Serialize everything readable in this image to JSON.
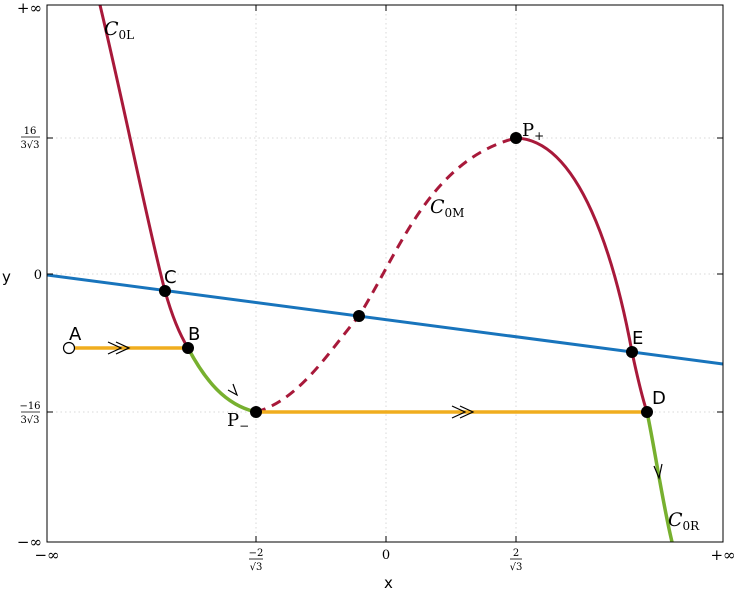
{
  "axes": {
    "x_label": "x",
    "y_label": "y",
    "x_ticks": [
      {
        "num": "",
        "den": "",
        "text": "−∞"
      },
      {
        "num": "−2",
        "den": "√3",
        "text": ""
      },
      {
        "num": "",
        "den": "",
        "text": "0"
      },
      {
        "num": "2",
        "den": "√3",
        "text": ""
      },
      {
        "num": "",
        "den": "",
        "text": "+∞"
      }
    ],
    "y_ticks": [
      {
        "num": "",
        "den": "",
        "text": "+∞"
      },
      {
        "num": "16",
        "den": "3√3",
        "text": ""
      },
      {
        "num": "",
        "den": "",
        "text": "0"
      },
      {
        "num": "−16",
        "den": "3√3",
        "text": ""
      },
      {
        "num": "",
        "den": "",
        "text": "−∞"
      }
    ],
    "grid": true
  },
  "curves": {
    "c0l": {
      "main": "C",
      "sub": "0L"
    },
    "c0m": {
      "main": "C",
      "sub": "0M"
    },
    "c0r": {
      "main": "C",
      "sub": "0R"
    }
  },
  "points": {
    "A": "A",
    "B": "B",
    "C": "C",
    "D": "D",
    "E": "E",
    "p_minus": {
      "main": "P",
      "sub": "−"
    },
    "p_plus": {
      "main": "P",
      "sub": "+"
    }
  },
  "colors": {
    "cubic": "#a8193a",
    "line": "#1874bc",
    "fast": "#f0ad1e",
    "slow": "#77b02f",
    "grid": "#d8d8d8",
    "frame": "#000000"
  }
}
